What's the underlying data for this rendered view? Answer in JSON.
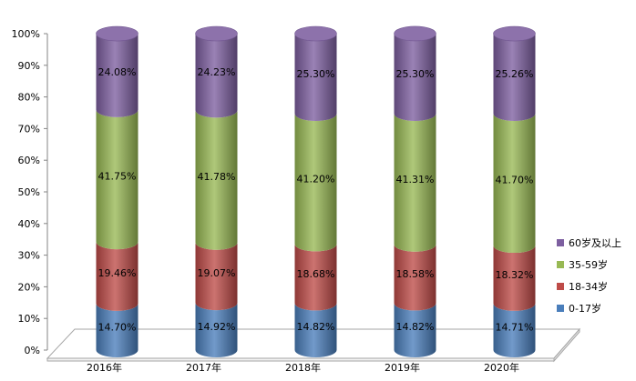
{
  "chart_data": {
    "type": "bar",
    "stacked": true,
    "percent": true,
    "style": "3d-cylinder",
    "categories": [
      "2016年",
      "2017年",
      "2018年",
      "2019年",
      "2020年"
    ],
    "series": [
      {
        "name": "0-17岁",
        "color": "#4a7ebb",
        "values": [
          14.7,
          14.92,
          14.82,
          14.82,
          14.71
        ],
        "labels": [
          "14.70%",
          "14.92%",
          "14.82%",
          "14.82%",
          "14.71%"
        ]
      },
      {
        "name": "18-34岁",
        "color": "#be4b48",
        "values": [
          19.46,
          19.07,
          18.68,
          18.58,
          18.32
        ],
        "labels": [
          "19.46%",
          "19.07%",
          "18.68%",
          "18.58%",
          "18.32%"
        ]
      },
      {
        "name": "35-59岁",
        "color": "#98b954",
        "values": [
          41.75,
          41.78,
          41.2,
          41.31,
          41.7
        ],
        "labels": [
          "41.75%",
          "41.78%",
          "41.20%",
          "41.31%",
          "41.70%"
        ]
      },
      {
        "name": "60岁及以上",
        "color": "#7d5fa0",
        "values": [
          24.08,
          24.23,
          25.3,
          25.3,
          25.26
        ],
        "labels": [
          "24.08%",
          "24.23%",
          "25.30%",
          "25.30%",
          "25.26%"
        ]
      }
    ],
    "yticks": [
      "0%",
      "10%",
      "20%",
      "30%",
      "40%",
      "50%",
      "60%",
      "70%",
      "80%",
      "90%",
      "100%"
    ],
    "ylim": [
      0,
      100
    ],
    "grid": false,
    "legend_position": "right"
  }
}
